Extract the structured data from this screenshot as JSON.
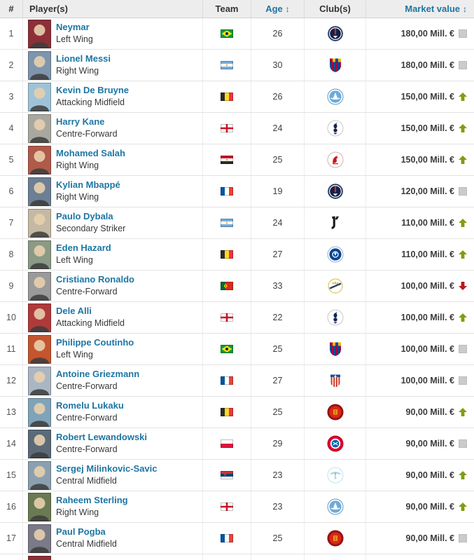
{
  "header": {
    "columns": [
      {
        "label": "#",
        "sortable": false
      },
      {
        "label": "Player(s)",
        "sortable": false
      },
      {
        "label": "Team",
        "sortable": false
      },
      {
        "label": "Age",
        "sortable": true
      },
      {
        "label": "Club(s)",
        "sortable": false
      },
      {
        "label": "Market value",
        "sortable": true
      }
    ],
    "sort_icon": "↕"
  },
  "colors": {
    "link_blue": "#1d75a3",
    "header_bg": "#ededed",
    "trend_up_green": "#7d9e10",
    "trend_down_red": "#bb161b",
    "trend_same_grey": "#cbcbcb",
    "row_border": "#e3e3e3"
  },
  "rows": [
    {
      "rank": 1,
      "name": "Neymar",
      "position": "Left Wing",
      "country": "Brazil",
      "age": 26,
      "club": "Paris Saint-Germain",
      "value": "180,00 Mill. €",
      "trend": "same"
    },
    {
      "rank": 2,
      "name": "Lionel Messi",
      "position": "Right Wing",
      "country": "Argentina",
      "age": 30,
      "club": "FC Barcelona",
      "value": "180,00 Mill. €",
      "trend": "same"
    },
    {
      "rank": 3,
      "name": "Kevin De Bruyne",
      "position": "Attacking Midfield",
      "country": "Belgium",
      "age": 26,
      "club": "Manchester City",
      "value": "150,00 Mill. €",
      "trend": "up"
    },
    {
      "rank": 4,
      "name": "Harry Kane",
      "position": "Centre-Forward",
      "country": "England",
      "age": 24,
      "club": "Tottenham Hotspur",
      "value": "150,00 Mill. €",
      "trend": "up"
    },
    {
      "rank": 5,
      "name": "Mohamed Salah",
      "position": "Right Wing",
      "country": "Egypt",
      "age": 25,
      "club": "Liverpool FC",
      "value": "150,00 Mill. €",
      "trend": "up"
    },
    {
      "rank": 6,
      "name": "Kylian Mbappé",
      "position": "Right Wing",
      "country": "France",
      "age": 19,
      "club": "Paris Saint-Germain",
      "value": "120,00 Mill. €",
      "trend": "same"
    },
    {
      "rank": 7,
      "name": "Paulo Dybala",
      "position": "Secondary Striker",
      "country": "Argentina",
      "age": 24,
      "club": "Juventus FC",
      "value": "110,00 Mill. €",
      "trend": "up"
    },
    {
      "rank": 8,
      "name": "Eden Hazard",
      "position": "Left Wing",
      "country": "Belgium",
      "age": 27,
      "club": "Chelsea FC",
      "value": "110,00 Mill. €",
      "trend": "up"
    },
    {
      "rank": 9,
      "name": "Cristiano Ronaldo",
      "position": "Centre-Forward",
      "country": "Portugal",
      "age": 33,
      "club": "Real Madrid",
      "value": "100,00 Mill. €",
      "trend": "down"
    },
    {
      "rank": 10,
      "name": "Dele Alli",
      "position": "Attacking Midfield",
      "country": "England",
      "age": 22,
      "club": "Tottenham Hotspur",
      "value": "100,00 Mill. €",
      "trend": "up"
    },
    {
      "rank": 11,
      "name": "Philippe Coutinho",
      "position": "Left Wing",
      "country": "Brazil",
      "age": 25,
      "club": "FC Barcelona",
      "value": "100,00 Mill. €",
      "trend": "same"
    },
    {
      "rank": 12,
      "name": "Antoine Griezmann",
      "position": "Centre-Forward",
      "country": "France",
      "age": 27,
      "club": "Atletico Madrid",
      "value": "100,00 Mill. €",
      "trend": "same"
    },
    {
      "rank": 13,
      "name": "Romelu Lukaku",
      "position": "Centre-Forward",
      "country": "Belgium",
      "age": 25,
      "club": "Manchester United",
      "value": "90,00 Mill. €",
      "trend": "up"
    },
    {
      "rank": 14,
      "name": "Robert Lewandowski",
      "position": "Centre-Forward",
      "country": "Poland",
      "age": 29,
      "club": "Bayern Munich",
      "value": "90,00 Mill. €",
      "trend": "same"
    },
    {
      "rank": 15,
      "name": "Sergej Milinkovic-Savic",
      "position": "Central Midfield",
      "country": "Serbia",
      "age": 23,
      "club": "Lazio",
      "value": "90,00 Mill. €",
      "trend": "up"
    },
    {
      "rank": 16,
      "name": "Raheem Sterling",
      "position": "Right Wing",
      "country": "England",
      "age": 23,
      "club": "Manchester City",
      "value": "90,00 Mill. €",
      "trend": "up"
    },
    {
      "rank": 17,
      "name": "Paul Pogba",
      "position": "Central Midfield",
      "country": "France",
      "age": 25,
      "club": "Manchester United",
      "value": "90,00 Mill. €",
      "trend": "same"
    }
  ]
}
